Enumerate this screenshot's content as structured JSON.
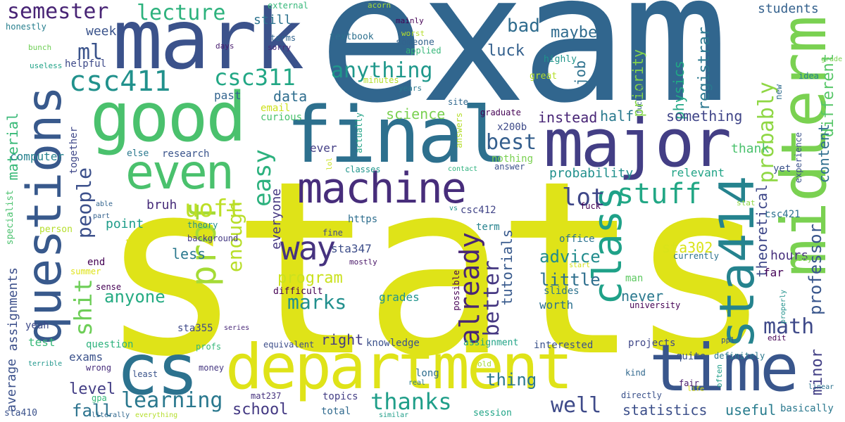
{
  "words": [
    {
      "text": "stats",
      "color": "#dfe318"
    },
    {
      "text": "exam",
      "color": "#31668e"
    },
    {
      "text": "questions",
      "color": "#38598c"
    },
    {
      "text": "mark",
      "color": "#3b528b"
    },
    {
      "text": "good",
      "color": "#4ac16d"
    },
    {
      "text": "final",
      "color": "#2d708e"
    },
    {
      "text": "major",
      "color": "#433e85"
    },
    {
      "text": "midterm",
      "color": "#7ad151"
    },
    {
      "text": "department",
      "color": "#dfe318"
    },
    {
      "text": "time",
      "color": "#39568c"
    },
    {
      "text": "cs",
      "color": "#2c728e"
    },
    {
      "text": "sta414",
      "color": "#25838e"
    },
    {
      "text": "machine",
      "color": "#472d7b"
    },
    {
      "text": "even",
      "color": "#4ac16d"
    },
    {
      "text": "class",
      "color": "#1fa188"
    },
    {
      "text": "prof",
      "color": "#a5db36"
    },
    {
      "text": "way",
      "color": "#46337f"
    },
    {
      "text": "csc411",
      "color": "#21918c"
    },
    {
      "text": "csc311",
      "color": "#22a785"
    },
    {
      "text": "stuff",
      "color": "#22a785"
    },
    {
      "text": "learning",
      "color": "#2a788e"
    },
    {
      "text": "thanks",
      "color": "#1f9e89"
    },
    {
      "text": "well",
      "color": "#3e4a89"
    },
    {
      "text": "math",
      "color": "#3e4989"
    },
    {
      "text": "hard",
      "color": "#404688"
    },
    {
      "text": "already",
      "color": "#482576"
    },
    {
      "text": "better",
      "color": "#453781"
    },
    {
      "text": "semester",
      "color": "#482475"
    },
    {
      "text": "lecture",
      "color": "#2db27d"
    },
    {
      "text": "anything",
      "color": "#1f988b"
    },
    {
      "text": "probably",
      "color": "#8fd744"
    },
    {
      "text": "ml",
      "color": "#3a538b"
    },
    {
      "text": "best",
      "color": "#355f8d"
    },
    {
      "text": "bad",
      "color": "#2f6c8e"
    },
    {
      "text": "maybe",
      "color": "#2f6b8e"
    },
    {
      "text": "luck",
      "color": "#34608d"
    },
    {
      "text": "uoft",
      "color": "#bddf26"
    },
    {
      "text": "lot",
      "color": "#3f4788"
    },
    {
      "text": "enough",
      "color": "#b8de29"
    },
    {
      "text": "people",
      "color": "#3c508b"
    },
    {
      "text": "shit",
      "color": "#6ece58"
    },
    {
      "text": "easy",
      "color": "#2cb17e"
    },
    {
      "text": "marks",
      "color": "#218f8d"
    },
    {
      "text": "anyone",
      "color": "#25ab82"
    },
    {
      "text": "program",
      "color": "#cae11f"
    },
    {
      "text": "tutorials",
      "color": "#37598c"
    },
    {
      "text": "advice",
      "color": "#228c8d"
    },
    {
      "text": "little",
      "color": "#2e6f8e"
    },
    {
      "text": "thing",
      "color": "#2a778e"
    },
    {
      "text": "fall",
      "color": "#2c738e"
    },
    {
      "text": "school",
      "color": "#443983"
    },
    {
      "text": "level",
      "color": "#433e85"
    },
    {
      "text": "statistics",
      "color": "#3c4f8a"
    },
    {
      "text": "useful",
      "color": "#287c8e"
    },
    {
      "text": "minor",
      "color": "#423f85"
    },
    {
      "text": "professor",
      "color": "#39568c"
    },
    {
      "text": "physics",
      "color": "#22a785"
    },
    {
      "text": "registrar",
      "color": "#2a778e"
    },
    {
      "text": "priority",
      "color": "#84d44b"
    },
    {
      "text": "job",
      "color": "#2d718e"
    },
    {
      "text": "different",
      "color": "#56c667"
    },
    {
      "text": "content",
      "color": "#2e6e8e"
    },
    {
      "text": "students",
      "color": "#34618d"
    },
    {
      "text": "something",
      "color": "#404588"
    },
    {
      "text": "instead",
      "color": "#482576"
    },
    {
      "text": "half",
      "color": "#29798e"
    },
    {
      "text": "probability",
      "color": "#21908d"
    },
    {
      "text": "thank",
      "color": "#4ac16d"
    },
    {
      "text": "relevant",
      "color": "#20a386"
    },
    {
      "text": "theoretical",
      "color": "#3f4889"
    },
    {
      "text": "hours",
      "color": "#472f7d"
    },
    {
      "text": "sta302",
      "color": "#dae319"
    },
    {
      "text": "sta347",
      "color": "#3d4e8a"
    },
    {
      "text": "point",
      "color": "#1e9c89"
    },
    {
      "text": "bruh",
      "color": "#472c7a"
    },
    {
      "text": "less",
      "color": "#2a788e"
    },
    {
      "text": "never",
      "color": "#2a788e"
    },
    {
      "text": "worth",
      "color": "#2c718e"
    },
    {
      "text": "right",
      "color": "#443b84"
    },
    {
      "text": "grades",
      "color": "#1f948c"
    },
    {
      "text": "data",
      "color": "#2e6d8e"
    },
    {
      "text": "science",
      "color": "#7ad151"
    },
    {
      "text": "material",
      "color": "#38b977"
    },
    {
      "text": "computer",
      "color": "#26818e"
    },
    {
      "text": "assignments",
      "color": "#3c4f8a"
    },
    {
      "text": "average",
      "color": "#3b518b"
    },
    {
      "text": "exams",
      "color": "#3b528b"
    },
    {
      "text": "test",
      "color": "#37b878"
    },
    {
      "text": "question",
      "color": "#2db27d"
    },
    {
      "text": "week",
      "color": "#3a538b"
    },
    {
      "text": "still",
      "color": "#2c728e"
    },
    {
      "text": "past",
      "color": "#32648e"
    },
    {
      "text": "email",
      "color": "#cde11d"
    },
    {
      "text": "curious",
      "color": "#4ac16d"
    },
    {
      "text": "research",
      "color": "#3a548c"
    },
    {
      "text": "everyone",
      "color": "#453781"
    },
    {
      "text": "together",
      "color": "#3f4889"
    },
    {
      "text": "ever",
      "color": "#433e85"
    },
    {
      "text": "nothing",
      "color": "#7ad151"
    },
    {
      "text": "x200b",
      "color": "#3e4a89"
    },
    {
      "text": "graduate",
      "color": "#440154"
    },
    {
      "text": "site",
      "color": "#31688e"
    },
    {
      "text": "textbook",
      "color": "#2d708e"
    },
    {
      "text": "external",
      "color": "#35b779"
    },
    {
      "text": "acorn",
      "color": "#a5db36"
    },
    {
      "text": "mainly",
      "color": "#440154"
    },
    {
      "text": "worst",
      "color": "#b5de2b"
    },
    {
      "text": "someone",
      "color": "#33638d"
    },
    {
      "text": "applied",
      "color": "#35b779"
    },
    {
      "text": "terms",
      "color": "#32648e"
    },
    {
      "text": "sorry",
      "color": "#472a7a"
    },
    {
      "text": "days",
      "color": "#481d6f"
    },
    {
      "text": "bunch",
      "color": "#70cf57"
    },
    {
      "text": "helpful",
      "color": "#3e4a89"
    },
    {
      "text": "useless",
      "color": "#1fa287"
    },
    {
      "text": "honestly",
      "color": "#277f8e"
    },
    {
      "text": "minutes",
      "color": "#b5de2b"
    },
    {
      "text": "years",
      "color": "#2a788e"
    },
    {
      "text": "highly",
      "color": "#1f958b"
    },
    {
      "text": "student",
      "color": "#32648e"
    },
    {
      "text": "great",
      "color": "#b5de2b"
    },
    {
      "text": "idea",
      "color": "#26828e"
    },
    {
      "text": "new",
      "color": "#2f6c8e"
    },
    {
      "text": "grade",
      "color": "#7ad151"
    },
    {
      "text": "fucking",
      "color": "#355f8d"
    },
    {
      "text": "experience",
      "color": "#3b528b"
    },
    {
      "text": "specialist",
      "color": "#4ac16d"
    },
    {
      "text": "able",
      "color": "#32648e"
    },
    {
      "text": "part",
      "color": "#34618d"
    },
    {
      "text": "person",
      "color": "#b5de2b"
    },
    {
      "text": "today",
      "color": "#dfe318"
    },
    {
      "text": "summer",
      "color": "#dfe318"
    },
    {
      "text": "sense",
      "color": "#440154"
    },
    {
      "text": "series",
      "color": "#482878"
    },
    {
      "text": "terrible",
      "color": "#1f968b"
    },
    {
      "text": "theory",
      "color": "#21918c"
    },
    {
      "text": "background",
      "color": "#443983"
    },
    {
      "text": "https",
      "color": "#2e6e8e"
    },
    {
      "text": "fine",
      "color": "#3e4989"
    },
    {
      "text": "term",
      "color": "#26828e"
    },
    {
      "text": "vs",
      "color": "#21918c"
    },
    {
      "text": "csc412",
      "color": "#414487"
    },
    {
      "text": "csc421",
      "color": "#2d708e"
    },
    {
      "text": "stat",
      "color": "#8fd744"
    },
    {
      "text": "fuck",
      "color": "#440154"
    },
    {
      "text": "office",
      "color": "#2c728e"
    },
    {
      "text": "currently",
      "color": "#2c728e"
    },
    {
      "text": "day",
      "color": "#7ad151"
    },
    {
      "text": "start",
      "color": "#d2e21b"
    },
    {
      "text": "end",
      "color": "#440154"
    },
    {
      "text": "mostly",
      "color": "#481668"
    },
    {
      "text": "possible",
      "color": "#440154"
    },
    {
      "text": "difficult",
      "color": "#440154"
    },
    {
      "text": "slides",
      "color": "#2c728e"
    },
    {
      "text": "man",
      "color": "#5ec962"
    },
    {
      "text": "far",
      "color": "#450559"
    },
    {
      "text": "university",
      "color": "#440154"
    },
    {
      "text": "properly",
      "color": "#21918c"
    },
    {
      "text": "sta355",
      "color": "#3e4989"
    },
    {
      "text": "profs",
      "color": "#35b779"
    },
    {
      "text": "equivalent",
      "color": "#3d4e8a"
    },
    {
      "text": "knowledge",
      "color": "#3b518b"
    },
    {
      "text": "assignment",
      "color": "#20a386"
    },
    {
      "text": "interested",
      "color": "#3b528b"
    },
    {
      "text": "projects",
      "color": "#3f4788"
    },
    {
      "text": "ppl",
      "color": "#3b528b"
    },
    {
      "text": "edit",
      "color": "#440154"
    },
    {
      "text": "quite",
      "color": "#3a538b"
    },
    {
      "text": "definitely",
      "color": "#2a788e"
    },
    {
      "text": "often",
      "color": "#1f9e89"
    },
    {
      "text": "kind",
      "color": "#31688e"
    },
    {
      "text": "fair",
      "color": "#481a6c"
    },
    {
      "text": "life",
      "color": "#dfe318"
    },
    {
      "text": "linear",
      "color": "#2c738e"
    },
    {
      "text": "wrong",
      "color": "#472d7b"
    },
    {
      "text": "money",
      "color": "#453781"
    },
    {
      "text": "least",
      "color": "#3a538b"
    },
    {
      "text": "long",
      "color": "#2e6e8e"
    },
    {
      "text": "old",
      "color": "#a5db36"
    },
    {
      "text": "real",
      "color": "#2a788e"
    },
    {
      "text": "gpa",
      "color": "#35b779"
    },
    {
      "text": "mat237",
      "color": "#46327e"
    },
    {
      "text": "topics",
      "color": "#433e85"
    },
    {
      "text": "total",
      "color": "#306a8e"
    },
    {
      "text": "session",
      "color": "#20a486"
    },
    {
      "text": "directly",
      "color": "#3b528b"
    },
    {
      "text": "basically",
      "color": "#2a788e"
    },
    {
      "text": "sta410",
      "color": "#3b528b"
    },
    {
      "text": "literally",
      "color": "#31688e"
    },
    {
      "text": "everything",
      "color": "#b5de2b"
    },
    {
      "text": "similar",
      "color": "#1f9e89"
    },
    {
      "text": "actually",
      "color": "#20a386"
    },
    {
      "text": "answers",
      "color": "#b5de2b"
    },
    {
      "text": "lol",
      "color": "#c8e020"
    },
    {
      "text": "classes",
      "color": "#1f958b"
    },
    {
      "text": "contact",
      "color": "#2db27d"
    },
    {
      "text": "answer",
      "color": "#3b518b"
    },
    {
      "text": "else",
      "color": "#2a788e"
    },
    {
      "text": "yeah",
      "color": "#3e4a89"
    },
    {
      "text": "yet",
      "color": "#3b528b"
    }
  ]
}
